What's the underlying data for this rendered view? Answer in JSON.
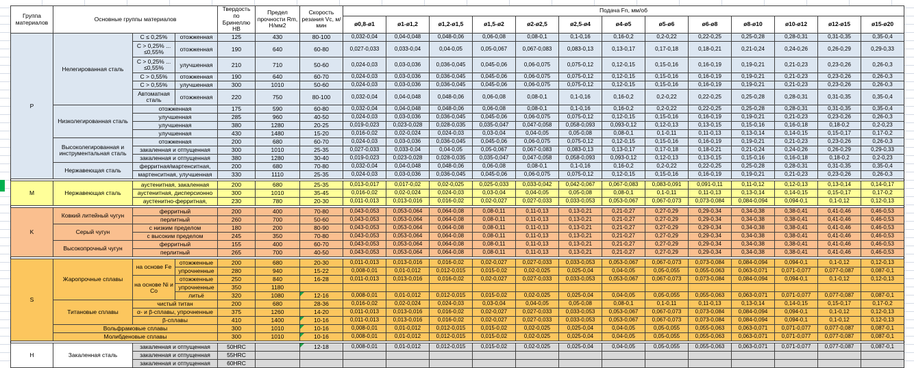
{
  "header": {
    "left_columns": [
      {
        "label": "Группа материалов",
        "colspan": 1
      },
      {
        "label": "Основные группы материалов",
        "colspan": 3
      },
      {
        "label": "Твердость по Бринеллю HB",
        "colspan": 1
      },
      {
        "label": "Предел прочности Rm, Н/мм2",
        "colspan": 1
      },
      {
        "label": "Скорость резания Vc, м/мин",
        "colspan": 1
      }
    ],
    "feed_title": "Подача Fn, мм/об",
    "diameters": [
      "ø0,8-ø1",
      "ø1-ø1,2",
      "ø1,2-ø1,5",
      "ø1,5-ø2",
      "ø2-ø2,5",
      "ø2,5-ø4",
      "ø4-ø5",
      "ø5-ø6",
      "ø6-ø8",
      "ø8-ø10",
      "ø10-ø12",
      "ø12-ø15",
      "ø15-ø20"
    ]
  },
  "colors": {
    "group_p": "#dce6f1",
    "group_m": "#ffff99",
    "group_k": "#fabf8f",
    "group_s": "#fcc65e",
    "group_h": "#d9d9d9",
    "grid": "#d6dce6",
    "cell_border": "#404040",
    "error_triangle": "#1fa048",
    "sheet_marker": "#00b050"
  },
  "feed_sets": {
    "A": [
      "0,032-0,04",
      "0,04-0,048",
      "0,048-0,06",
      "0,06-0,08",
      "0,08-0,1",
      "0,1-0,16",
      "0,16-0,2",
      "0,2-0,22",
      "0,22-0,25",
      "0,25-0,28",
      "0,28-0,31",
      "0,31-0,35",
      "0,35-0,4"
    ],
    "B": [
      "0,027-0,033",
      "0,033-0,04",
      "0,04-0,05",
      "0,05-0,067",
      "0,067-0,083",
      "0,083-0,13",
      "0,13-0,17",
      "0,17-0,18",
      "0,18-0,21",
      "0,21-0,24",
      "0,24-0,26",
      "0,26-0,29",
      "0,29-0,33"
    ],
    "C": [
      "0,024-0,03",
      "0,03-0,036",
      "0,036-0,045",
      "0,045-0,06",
      "0,06-0,075",
      "0,075-0,12",
      "0,12-0,15",
      "0,15-0,16",
      "0,16-0,19",
      "0,19-0,21",
      "0,21-0,23",
      "0,23-0,26",
      "0,26-0,3"
    ],
    "D": [
      "0,019-0,023",
      "0,023-0,028",
      "0,028-0,035",
      "0,035-0,047",
      "0,047-0,058",
      "0,058-0,093",
      "0,093-0,12",
      "0,12-0,13",
      "0,13-0,15",
      "0,15-0,16",
      "0,16-0,18",
      "0,18-0,2",
      "0,2-0,23"
    ],
    "E": [
      "0,016-0,02",
      "0,02-0,024",
      "0,024-0,03",
      "0,03-0,04",
      "0,04-0,05",
      "0,05-0,08",
      "0,08-0,1",
      "0,1-0,11",
      "0,11-0,13",
      "0,13-0,14",
      "0,14-0,15",
      "0,15-0,17",
      "0,17-0,2"
    ],
    "F": [
      "0,013-0,017",
      "0,017-0,02",
      "0,02-0,025",
      "0,025-0,033",
      "0,033-0,042",
      "0,042-0,067",
      "0,067-0,083",
      "0,083-0,091",
      "0,091-0,11",
      "0,11-0,12",
      "0,12-0,13",
      "0,13-0,14",
      "0,14-0,17"
    ],
    "G": [
      "0,011-0,013",
      "0,013-0,016",
      "0,016-0,02",
      "0,02-0,027",
      "0,027-0,033",
      "0,033-0,053",
      "0,053-0,067",
      "0,067-0,073",
      "0,073-0,084",
      "0,084-0,094",
      "0,094-0,1",
      "0,1-0,12",
      "0,12-0,13"
    ],
    "H": [
      "0,043-0,053",
      "0,053-0,064",
      "0,064-0,08",
      "0,08-0,11",
      "0,11-0,13",
      "0,13-0,21",
      "0,21-0,27",
      "0,27-0,29",
      "0,29-0,34",
      "0,34-0,38",
      "0,38-0,41",
      "0,41-0,46",
      "0,46-0,53"
    ],
    "I": [
      "0,008-0,01",
      "0,01-0,012",
      "0,012-0,015",
      "0,015-0,02",
      "0,02-0,025",
      "0,025-0,04",
      "0,04-0,05",
      "0,05-0,055",
      "0,055-0,063",
      "0,063-0,071",
      "0,071-0,077",
      "0,077-0,087",
      "0,087-0,1"
    ],
    "blank": [
      "",
      "",
      "",
      "",
      "",
      "",
      "",
      "",
      "",
      "",
      "",
      "",
      ""
    ]
  },
  "rows": [
    {
      "cls": "p",
      "feeds": "A",
      "cells": [
        [
          "P",
          1,
          15
        ],
        [
          "Нелегированная сталь",
          1,
          6
        ],
        [
          "C ≤ 0,25%"
        ],
        [
          "отожженная"
        ],
        [
          "125"
        ],
        [
          "430"
        ],
        [
          "80-100"
        ]
      ]
    },
    {
      "cls": "p",
      "feeds": "B",
      "tall": true,
      "cells": [
        [
          "C > 0,25% ... ≤0,55%"
        ],
        [
          "отожженная"
        ],
        [
          "190"
        ],
        [
          "640"
        ],
        [
          "60-80"
        ]
      ]
    },
    {
      "cls": "p",
      "feeds": "C",
      "tall": true,
      "cells": [
        [
          "C > 0,25% ... ≤0,55%"
        ],
        [
          "улучшенная"
        ],
        [
          "210"
        ],
        [
          "710"
        ],
        [
          "50-60"
        ]
      ]
    },
    {
      "cls": "p",
      "feeds": "C",
      "cells": [
        [
          "C > 0,55%"
        ],
        [
          "отожженная"
        ],
        [
          "190"
        ],
        [
          "640"
        ],
        [
          "60-70"
        ]
      ]
    },
    {
      "cls": "p",
      "feeds": "C",
      "cells": [
        [
          "C > 0,55%"
        ],
        [
          "улучшенная"
        ],
        [
          "300"
        ],
        [
          "1010"
        ],
        [
          "50-60"
        ]
      ]
    },
    {
      "cls": "p",
      "feeds": "A",
      "tall": true,
      "cells": [
        [
          "Автоматная сталь"
        ],
        [
          "отожженная"
        ],
        [
          "220"
        ],
        [
          "750"
        ],
        [
          "80-100"
        ]
      ]
    },
    {
      "cls": "p",
      "feeds": "A",
      "cells": [
        [
          "Низколегированная сталь",
          1,
          4
        ],
        [
          "отожженная",
          2
        ],
        [
          "175"
        ],
        [
          "590"
        ],
        [
          "60-80"
        ]
      ]
    },
    {
      "cls": "p",
      "feeds": "C",
      "cells": [
        [
          "улучшенная",
          2
        ],
        [
          "285"
        ],
        [
          "960"
        ],
        [
          "40-50"
        ]
      ]
    },
    {
      "cls": "p",
      "feeds": "D",
      "cells": [
        [
          "улучшенная",
          2
        ],
        [
          "380"
        ],
        [
          "1280"
        ],
        [
          "20-25"
        ]
      ]
    },
    {
      "cls": "p",
      "feeds": "E",
      "cells": [
        [
          "улучшенная",
          2
        ],
        [
          "430"
        ],
        [
          "1480"
        ],
        [
          "15-20"
        ]
      ]
    },
    {
      "cls": "p",
      "feeds": "C",
      "cells": [
        [
          "Высоколегированная и инструментальная сталь",
          1,
          3
        ],
        [
          "отожженная",
          2
        ],
        [
          "200"
        ],
        [
          "680"
        ],
        [
          "60-70"
        ]
      ]
    },
    {
      "cls": "p",
      "feeds": "B",
      "cells": [
        [
          "закаленная и отпущенная",
          2
        ],
        [
          "300"
        ],
        [
          "1010"
        ],
        [
          "25-35"
        ]
      ]
    },
    {
      "cls": "p",
      "feeds": "D",
      "cells": [
        [
          "закаленная и отпущенная",
          2
        ],
        [
          "380"
        ],
        [
          "1280"
        ],
        [
          "30-40"
        ]
      ]
    },
    {
      "cls": "p",
      "feeds": "A",
      "cells": [
        [
          "Нержавеющая сталь",
          1,
          2
        ],
        [
          "ферритная/мартенситная,",
          2
        ],
        [
          "200"
        ],
        [
          "680"
        ],
        [
          "70-80"
        ]
      ]
    },
    {
      "cls": "p",
      "feeds": "C",
      "spacer_after": true,
      "cells": [
        [
          "мартенситная, улучшенная",
          2
        ],
        [
          "330"
        ],
        [
          "1110"
        ],
        [
          "25-35"
        ]
      ]
    },
    {
      "cls": "m",
      "feeds": "F",
      "cells": [
        [
          "M",
          1,
          3
        ],
        [
          "Нержавеющая сталь",
          1,
          3
        ],
        [
          "аустенитная, закаленная",
          2
        ],
        [
          "200"
        ],
        [
          "680"
        ],
        [
          "25-35"
        ]
      ]
    },
    {
      "cls": "m",
      "feeds": "E",
      "cells": [
        [
          "аустенитная, дисперсионно",
          2
        ],
        [
          "300"
        ],
        [
          "1010"
        ],
        [
          "35-45"
        ]
      ]
    },
    {
      "cls": "m",
      "feeds": "G",
      "spacer_after": true,
      "cells": [
        [
          "аустенитно-ферритная,",
          2
        ],
        [
          "230"
        ],
        [
          "780"
        ],
        [
          "20-30"
        ]
      ]
    },
    {
      "cls": "k",
      "feeds": "H",
      "cells": [
        [
          "K",
          1,
          6
        ],
        [
          "Ковкий литейный чугун",
          1,
          2
        ],
        [
          "ферритный",
          2
        ],
        [
          "200"
        ],
        [
          "400"
        ],
        [
          "70-80"
        ]
      ]
    },
    {
      "cls": "k",
      "feeds": "H",
      "cells": [
        [
          "перлитный",
          2
        ],
        [
          "260"
        ],
        [
          "700"
        ],
        [
          "50-60"
        ]
      ]
    },
    {
      "cls": "k",
      "feeds": "H",
      "cells": [
        [
          "Серый чугун",
          1,
          2
        ],
        [
          "с низким пределом",
          2
        ],
        [
          "180"
        ],
        [
          "200"
        ],
        [
          "80-90"
        ]
      ]
    },
    {
      "cls": "k",
      "feeds": "H",
      "cells": [
        [
          "с высоким пределом",
          2
        ],
        [
          "245"
        ],
        [
          "350"
        ],
        [
          "70-80"
        ]
      ]
    },
    {
      "cls": "k",
      "feeds": "H",
      "cells": [
        [
          "Высокопрочный чугун",
          1,
          2
        ],
        [
          "ферритный",
          2
        ],
        [
          "155"
        ],
        [
          "400"
        ],
        [
          "60-70"
        ]
      ]
    },
    {
      "cls": "k",
      "feeds": "H",
      "spacer_after": true,
      "cells": [
        [
          "перлитный",
          2
        ],
        [
          "265"
        ],
        [
          "700"
        ],
        [
          "40-50"
        ]
      ]
    },
    {
      "cls": "s",
      "feeds": "G",
      "cells": [
        [
          "S",
          1,
          10
        ],
        [
          "Жаропрочные сплавы",
          1,
          5
        ],
        [
          "на основе Fe",
          1,
          2
        ],
        [
          "отожженные"
        ],
        [
          "200"
        ],
        [
          "680"
        ],
        [
          "20-30"
        ]
      ]
    },
    {
      "cls": "s",
      "feeds": "I",
      "cells": [
        [
          "упрочненные"
        ],
        [
          "280"
        ],
        [
          "940"
        ],
        [
          "15-22"
        ]
      ]
    },
    {
      "cls": "s",
      "feeds": "G",
      "cells": [
        [
          "на основе Ni и Со",
          1,
          3
        ],
        [
          "отожженные"
        ],
        [
          "250"
        ],
        [
          "840"
        ],
        [
          "16-28"
        ]
      ]
    },
    {
      "cls": "s",
      "feeds": "blank",
      "cells": [
        [
          "упрочненные"
        ],
        [
          "350"
        ],
        [
          "1180"
        ],
        [
          ""
        ]
      ]
    },
    {
      "cls": "s",
      "feeds": "I",
      "tri": true,
      "cells": [
        [
          "литьё"
        ],
        [
          "320"
        ],
        [
          "1080"
        ],
        [
          "12-16"
        ]
      ]
    },
    {
      "cls": "s",
      "feeds": "E",
      "cells": [
        [
          "Титановые сплавы",
          1,
          3
        ],
        [
          "чистый титан",
          2
        ],
        [
          "200"
        ],
        [
          "680"
        ],
        [
          "28-36"
        ]
      ]
    },
    {
      "cls": "s",
      "feeds": "G",
      "cells": [
        [
          "α- и β-сплавы, упрочненные",
          2
        ],
        [
          "375"
        ],
        [
          "1260"
        ],
        [
          "14-20"
        ]
      ]
    },
    {
      "cls": "s",
      "feeds": "G",
      "tri": true,
      "cells": [
        [
          "β-сплавы",
          2
        ],
        [
          "410"
        ],
        [
          "1400"
        ],
        [
          "10-16"
        ]
      ]
    },
    {
      "cls": "s",
      "feeds": "I",
      "tri": true,
      "cells": [
        [
          "Вольфрамовые сплавы",
          3
        ],
        [
          "300"
        ],
        [
          "1010"
        ],
        [
          "10-16"
        ]
      ]
    },
    {
      "cls": "s",
      "feeds": "I",
      "tri": true,
      "spacer_after": true,
      "cells": [
        [
          "Молибденовые сплавы",
          3
        ],
        [
          "300"
        ],
        [
          "1010"
        ],
        [
          "10-16"
        ]
      ]
    },
    {
      "cls": "h",
      "feeds": "I",
      "tri": true,
      "cells": [
        [
          "H",
          1,
          3,
          "w"
        ],
        [
          "Закаленная сталь",
          1,
          3,
          "w"
        ],
        [
          "закаленная и отпущенная",
          2
        ],
        [
          "50HRC"
        ],
        [
          ""
        ],
        [
          "12-18"
        ]
      ]
    },
    {
      "cls": "h",
      "feeds": "blank",
      "cells": [
        [
          "закаленная и отпущенная",
          2
        ],
        [
          "55HRC"
        ],
        [
          ""
        ],
        [
          ""
        ]
      ]
    },
    {
      "cls": "h",
      "feeds": "blank",
      "cells": [
        [
          "закаленная и отпущенная",
          2
        ],
        [
          "60HRC"
        ],
        [
          ""
        ],
        [
          ""
        ]
      ]
    }
  ]
}
